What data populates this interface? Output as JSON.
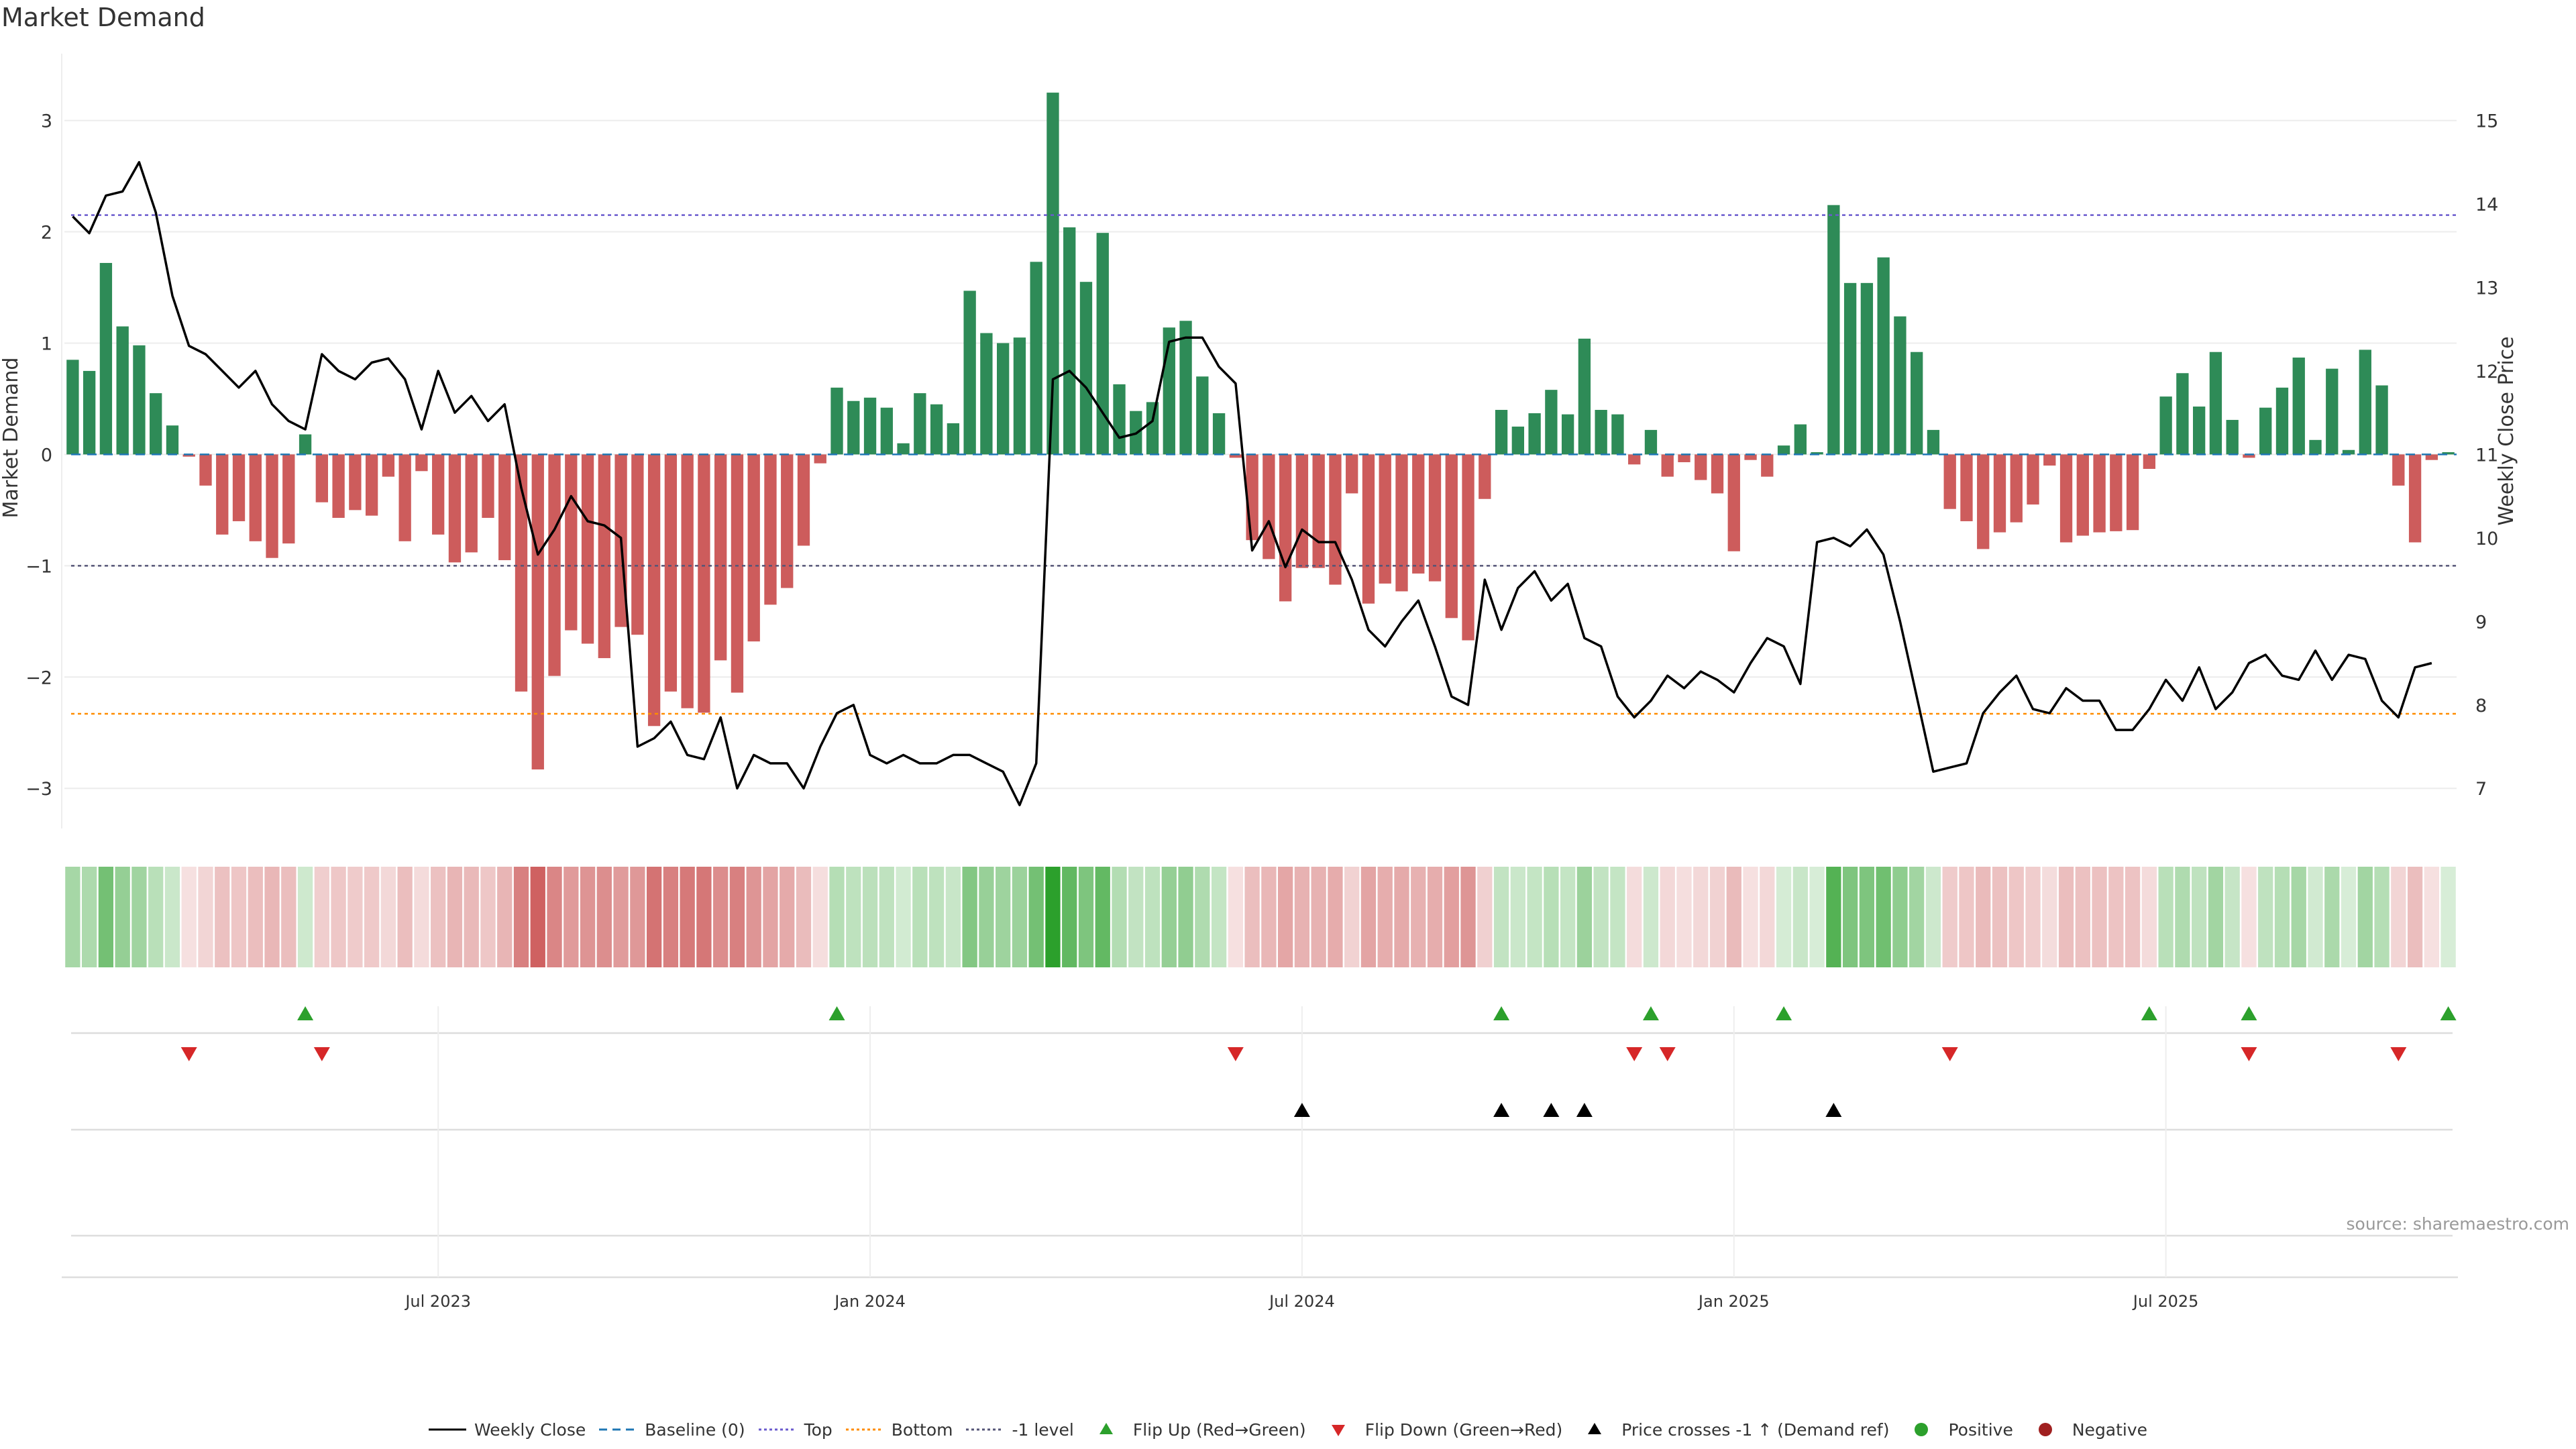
{
  "title": "Market Demand",
  "source": "source: sharemaestro.com",
  "colors": {
    "positive": "#2e8b57",
    "negative": "#cd5c5c",
    "price": "#000000",
    "baseline": "#1f77b4",
    "top": "#6a5acd",
    "bottom": "#ff8c00",
    "minus1": "#555577",
    "flip_up": "#2ca02c",
    "flip_down": "#d62728",
    "price_cross": "#000000",
    "positive_dot": "#2ca02c",
    "negative_dot": "#a02020"
  },
  "chart_data": {
    "type": "bar",
    "title": "Market Demand",
    "ylabel_left": "Market Demand",
    "ylabel_right": "Weekly Close Price",
    "ylim_left": [
      -3.3,
      3.6
    ],
    "ylim_right": [
      6.6,
      15.8
    ],
    "yticks_left": [
      "3",
      "2",
      "1",
      "0",
      "−1",
      "−2",
      "−3"
    ],
    "yticks_left_values": [
      3,
      2,
      1,
      0,
      -1,
      -2,
      -3
    ],
    "yticks_right": [
      "15",
      "14",
      "13",
      "12",
      "11",
      "10",
      "9",
      "8",
      "7"
    ],
    "yticks_right_values": [
      15,
      14,
      13,
      12,
      11,
      10,
      9,
      8,
      7
    ],
    "xticks": [
      "Jul 2023",
      "Jan 2024",
      "Jul 2024",
      "Jan 2025",
      "Jul 2025"
    ],
    "xticks_week_index": [
      22,
      48,
      74,
      100,
      126
    ],
    "reference_lines": {
      "top": 2.15,
      "bottom": -2.33,
      "minus_one": -1.0,
      "baseline": 0
    },
    "demand": [
      0.85,
      0.75,
      1.72,
      1.15,
      0.98,
      0.55,
      0.26,
      -0.02,
      -0.28,
      -0.72,
      -0.6,
      -0.78,
      -0.93,
      -0.8,
      0.18,
      -0.43,
      -0.57,
      -0.5,
      -0.55,
      -0.2,
      -0.78,
      -0.15,
      -0.72,
      -0.97,
      -0.88,
      -0.57,
      -0.95,
      -2.13,
      -2.83,
      -1.99,
      -1.58,
      -1.7,
      -1.83,
      -1.55,
      -1.62,
      -2.44,
      -2.13,
      -2.28,
      -2.32,
      -1.85,
      -2.14,
      -1.68,
      -1.35,
      -1.2,
      -0.82,
      -0.08,
      0.6,
      0.48,
      0.51,
      0.42,
      0.1,
      0.55,
      0.45,
      0.28,
      1.47,
      1.09,
      1.0,
      1.05,
      1.73,
      3.25,
      2.04,
      1.55,
      1.99,
      0.63,
      0.39,
      0.47,
      1.14,
      1.2,
      0.7,
      0.37,
      -0.03,
      -0.77,
      -0.94,
      -1.32,
      -1.02,
      -1.02,
      -1.17,
      -0.35,
      -1.34,
      -1.16,
      -1.23,
      -1.07,
      -1.14,
      -1.47,
      -1.67,
      -0.4,
      0.4,
      0.25,
      0.37,
      0.58,
      0.36,
      1.04,
      0.4,
      0.36,
      -0.09,
      0.22,
      -0.2,
      -0.07,
      -0.23,
      -0.35,
      -0.87,
      -0.05,
      -0.2,
      0.08,
      0.27,
      0.02,
      2.24,
      1.54,
      1.54,
      1.77,
      1.24,
      0.92,
      0.22,
      -0.49,
      -0.6,
      -0.85,
      -0.7,
      -0.61,
      -0.45,
      -0.1,
      -0.79,
      -0.73,
      -0.7,
      -0.69,
      -0.68,
      -0.13,
      0.52,
      0.73,
      0.43,
      0.92,
      0.31,
      -0.03,
      0.42,
      0.6,
      0.87,
      0.13,
      0.77,
      0.04,
      0.94,
      0.62,
      -0.28,
      -0.79,
      -0.05,
      0.02
    ],
    "weekly_close": [
      13.85,
      13.65,
      14.1,
      14.15,
      14.5,
      13.9,
      12.9,
      12.3,
      12.2,
      12.0,
      11.8,
      12.0,
      11.6,
      11.4,
      11.3,
      12.2,
      12.0,
      11.9,
      12.1,
      12.15,
      11.9,
      11.3,
      12.0,
      11.5,
      11.7,
      11.4,
      11.6,
      10.6,
      9.8,
      10.1,
      10.5,
      10.2,
      10.15,
      10.0,
      7.5,
      7.6,
      7.8,
      7.4,
      7.35,
      7.85,
      7.0,
      7.4,
      7.3,
      7.3,
      7.0,
      7.5,
      7.9,
      8.0,
      7.4,
      7.3,
      7.4,
      7.3,
      7.3,
      7.4,
      7.4,
      7.3,
      7.2,
      6.8,
      7.3,
      11.9,
      12.0,
      11.8,
      11.5,
      11.2,
      11.25,
      11.4,
      12.35,
      12.4,
      12.4,
      12.05,
      11.85,
      9.85,
      10.2,
      9.65,
      10.1,
      9.95,
      9.95,
      9.5,
      8.9,
      8.7,
      9.0,
      9.25,
      8.7,
      8.1,
      8.0,
      9.5,
      8.9,
      9.4,
      9.6,
      9.25,
      9.45,
      8.8,
      8.7,
      8.1,
      7.85,
      8.05,
      8.35,
      8.2,
      8.4,
      8.3,
      8.15,
      8.5,
      8.8,
      8.7,
      8.25,
      9.95,
      10.0,
      9.9,
      10.1,
      9.8,
      9.0,
      8.1,
      7.2,
      7.25,
      7.3,
      7.9,
      8.15,
      8.35,
      7.95,
      7.9,
      8.2,
      8.05,
      8.05,
      7.7,
      7.7,
      7.95,
      8.3,
      8.05,
      8.45,
      7.95,
      8.15,
      8.5,
      8.6,
      8.35,
      8.3,
      8.65,
      8.3,
      8.6,
      8.55,
      8.05,
      7.85,
      8.45,
      8.5
    ],
    "flip_up_weeks": [
      14,
      46,
      86,
      95,
      103,
      125,
      131,
      143
    ],
    "flip_down_weeks": [
      7,
      15,
      70,
      94,
      96,
      113,
      131,
      140
    ],
    "price_cross_weeks": [
      74,
      86,
      89,
      91,
      106
    ],
    "legend": [
      {
        "key": "price",
        "label": "Weekly Close"
      },
      {
        "key": "baseline",
        "label": "Baseline (0)"
      },
      {
        "key": "top",
        "label": "Top"
      },
      {
        "key": "bottom",
        "label": "Bottom"
      },
      {
        "key": "minus1",
        "label": "-1 level"
      },
      {
        "key": "flip_up",
        "label": "Flip Up (Red→Green)"
      },
      {
        "key": "flip_down",
        "label": "Flip Down (Green→Red)"
      },
      {
        "key": "price_cross",
        "label": "Price crosses -1 ↑ (Demand ref)"
      },
      {
        "key": "positive_dot",
        "label": "Positive"
      },
      {
        "key": "negative_dot",
        "label": "Negative"
      }
    ]
  }
}
